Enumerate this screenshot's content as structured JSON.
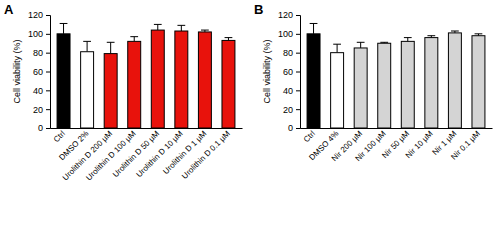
{
  "chart_data": [
    {
      "type": "bar",
      "title": "A",
      "y_label": "Cell viability (%)",
      "categories": [
        "Ctrl",
        "DMSO 2%",
        "Urolithin D 200 µM",
        "Urolithin D 100 µM",
        "Urolithin D 50 µM",
        "Urolithin D 10 µM",
        "Urolithin D 1 µM",
        "Urolithin D 0.1 µM"
      ],
      "values": [
        100,
        81,
        79,
        92,
        104,
        103,
        102,
        93
      ],
      "errors": [
        11,
        11,
        12,
        5,
        6,
        6,
        2,
        3
      ],
      "colors": [
        "#000000",
        "#ffffff",
        "#e8120c",
        "#e8120c",
        "#e8120c",
        "#e8120c",
        "#e8120c",
        "#e8120c"
      ],
      "ylim": [
        0,
        120
      ],
      "yticks": [
        0,
        20,
        40,
        60,
        80,
        100,
        120
      ],
      "grid": false
    },
    {
      "type": "bar",
      "title": "B",
      "y_label": "Cell viability (%)",
      "categories": [
        "Ctrl",
        "DMSO 4%",
        "Nir 200 µM",
        "Nir 100 µM",
        "Nir 50 µM",
        "Nir 10 µM",
        "Nir 1 µM",
        "Nir 0.1 µM"
      ],
      "values": [
        100,
        80,
        85,
        90,
        92,
        96,
        101,
        98
      ],
      "errors": [
        11,
        9,
        6,
        1,
        4,
        2,
        2,
        2
      ],
      "colors": [
        "#000000",
        "#ffffff",
        "#d4d4d4",
        "#d4d4d4",
        "#d4d4d4",
        "#d4d4d4",
        "#d4d4d4",
        "#d4d4d4"
      ],
      "ylim": [
        0,
        120
      ],
      "yticks": [
        0,
        20,
        40,
        60,
        80,
        100,
        120
      ],
      "grid": false
    }
  ]
}
